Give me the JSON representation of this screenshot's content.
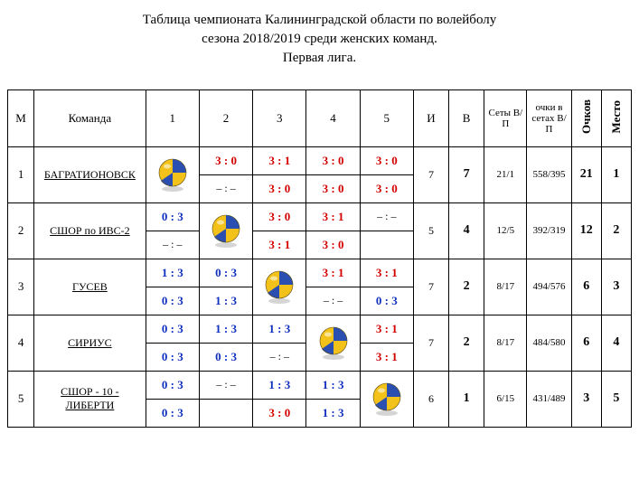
{
  "title": {
    "line1": "Таблица чемпионата Калининградской области по волейболу",
    "line2": "сезона 2018/2019 среди женских команд.",
    "line3": "Первая лига."
  },
  "headers": {
    "m": "М",
    "team": "Команда",
    "rounds": [
      "1",
      "2",
      "3",
      "4",
      "5"
    ],
    "played": "И",
    "wins": "В",
    "sets": "Сеты В/П",
    "points_in_sets": "очки в сетах В/П",
    "points": "Очков",
    "place": "Место"
  },
  "colors": {
    "win": "#d40000",
    "loss": "#1030c0",
    "dash": "#000000",
    "ball_yellow": "#f2c21a",
    "ball_blue": "#2b4fb0",
    "ball_shadow": "#888888"
  },
  "score_font_size": 13,
  "rows": [
    {
      "num": "1",
      "team": "БАГРАТИОНОВСК",
      "self_col": 0,
      "scores": [
        [
          null,
          {
            "t": "3 : 0",
            "w": true
          },
          {
            "t": "3 : 1",
            "w": true
          },
          {
            "t": "3 : 0",
            "w": true
          },
          {
            "t": "3 : 0",
            "w": true
          }
        ],
        [
          null,
          {
            "t": "– : –",
            "d": true
          },
          {
            "t": "3 : 0",
            "w": true
          },
          {
            "t": "3 : 0",
            "w": true
          },
          {
            "t": "3 : 0",
            "w": true
          }
        ]
      ],
      "played": "7",
      "wins": "7",
      "sets": "21/1",
      "pts_sets": "558/395",
      "points": "21",
      "place": "1"
    },
    {
      "num": "2",
      "team": "СШОР по ИВС-2",
      "self_col": 1,
      "scores": [
        [
          {
            "t": "0 : 3",
            "w": false
          },
          null,
          {
            "t": "3 : 0",
            "w": true
          },
          {
            "t": "3 : 1",
            "w": true
          },
          {
            "t": "– : –",
            "d": true
          }
        ],
        [
          {
            "t": "– : –",
            "d": true
          },
          null,
          {
            "t": "3 : 1",
            "w": true
          },
          {
            "t": "3 : 0",
            "w": true
          },
          {
            "t": "",
            "e": true
          }
        ]
      ],
      "played": "5",
      "wins": "4",
      "sets": "12/5",
      "pts_sets": "392/319",
      "points": "12",
      "place": "2"
    },
    {
      "num": "3",
      "team": "ГУСЕВ",
      "self_col": 2,
      "scores": [
        [
          {
            "t": "1 : 3",
            "w": false
          },
          {
            "t": "0 : 3",
            "w": false
          },
          null,
          {
            "t": "3 : 1",
            "w": true
          },
          {
            "t": "3 : 1",
            "w": true
          }
        ],
        [
          {
            "t": "0 : 3",
            "w": false
          },
          {
            "t": "1 : 3",
            "w": false
          },
          null,
          {
            "t": "– : –",
            "d": true
          },
          {
            "t": "0 : 3",
            "w": false
          }
        ]
      ],
      "played": "7",
      "wins": "2",
      "sets": "8/17",
      "pts_sets": "494/576",
      "points": "6",
      "place": "3"
    },
    {
      "num": "4",
      "team": "СИРИУС",
      "self_col": 3,
      "scores": [
        [
          {
            "t": "0 : 3",
            "w": false
          },
          {
            "t": "1 : 3",
            "w": false
          },
          {
            "t": "1 : 3",
            "w": false
          },
          null,
          {
            "t": "3 : 1",
            "w": true
          }
        ],
        [
          {
            "t": "0 : 3",
            "w": false
          },
          {
            "t": "0 : 3",
            "w": false
          },
          {
            "t": "– : –",
            "d": true
          },
          null,
          {
            "t": "3 : 1",
            "w": true
          }
        ]
      ],
      "played": "7",
      "wins": "2",
      "sets": "8/17",
      "pts_sets": "484/580",
      "points": "6",
      "place": "4"
    },
    {
      "num": "5",
      "team": "СШОР - 10 - ЛИБЕРТИ",
      "self_col": 4,
      "scores": [
        [
          {
            "t": "0 : 3",
            "w": false
          },
          {
            "t": "– : –",
            "d": true
          },
          {
            "t": "1 : 3",
            "w": false
          },
          {
            "t": "1 : 3",
            "w": false
          },
          null
        ],
        [
          {
            "t": "0 : 3",
            "w": false
          },
          {
            "t": "",
            "e": true
          },
          {
            "t": "3 : 0",
            "w": true
          },
          {
            "t": "1 : 3",
            "w": false
          },
          null
        ]
      ],
      "played": "6",
      "wins": "1",
      "sets": "6/15",
      "pts_sets": "431/489",
      "points": "3",
      "place": "5"
    }
  ]
}
